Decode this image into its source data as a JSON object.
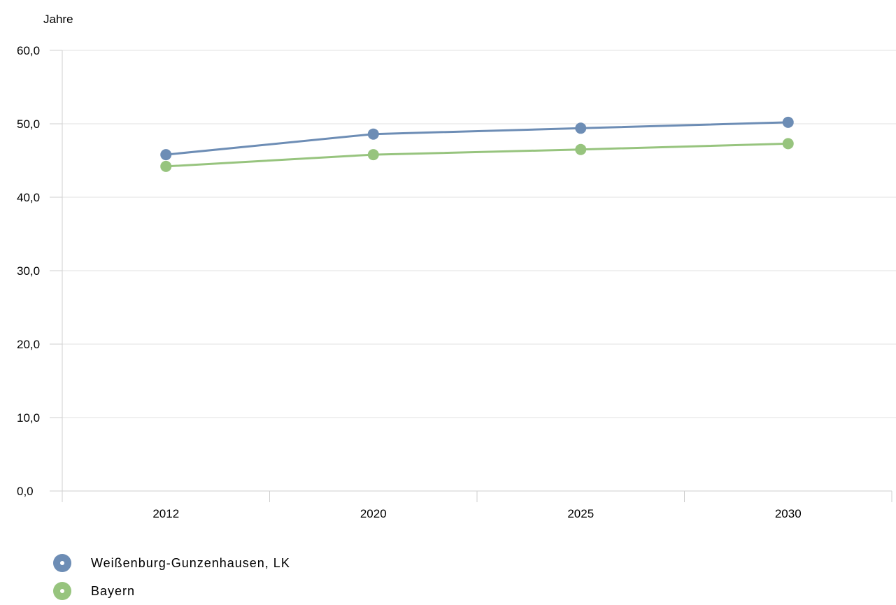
{
  "chart_data": {
    "type": "line",
    "ylabel": "Jahre",
    "x": [
      "2012",
      "2020",
      "2025",
      "2030"
    ],
    "ylim": [
      0,
      60
    ],
    "yticks": [
      "0,0",
      "10,0",
      "20,0",
      "30,0",
      "40,0",
      "50,0",
      "60,0"
    ],
    "grid": true,
    "legend_position": "bottom-left",
    "series": [
      {
        "name": "Weißenburg-Gunzenhausen, LK",
        "values": [
          45.8,
          48.6,
          49.4,
          50.2
        ],
        "color": "#6d8db5"
      },
      {
        "name": "Bayern",
        "values": [
          44.2,
          45.8,
          46.5,
          47.3
        ],
        "color": "#97c47e"
      }
    ]
  }
}
